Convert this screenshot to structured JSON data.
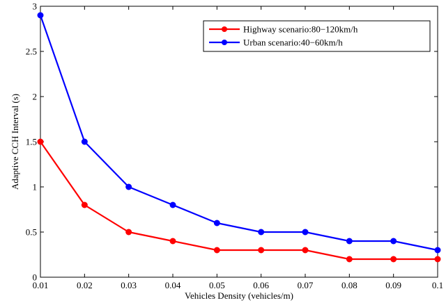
{
  "chart_data": {
    "type": "line",
    "title": "",
    "xlabel": "Vehicles Density (vehicles/m)",
    "ylabel": "Adaptive CCH Interval (s)",
    "xlim": [
      0.01,
      0.1
    ],
    "ylim": [
      0,
      3
    ],
    "x": [
      0.01,
      0.02,
      0.03,
      0.04,
      0.05,
      0.06,
      0.07,
      0.08,
      0.09,
      0.1
    ],
    "x_ticks": [
      "0.01",
      "0.02",
      "0.03",
      "0.04",
      "0.05",
      "0.06",
      "0.07",
      "0.08",
      "0.09",
      "0.1"
    ],
    "y_ticks": [
      "0",
      "0.5",
      "1",
      "1.5",
      "2",
      "2.5",
      "3"
    ],
    "x_tick_values": [
      0.01,
      0.02,
      0.03,
      0.04,
      0.05,
      0.06,
      0.07,
      0.08,
      0.09,
      0.1
    ],
    "y_tick_values": [
      0,
      0.5,
      1,
      1.5,
      2,
      2.5,
      3
    ],
    "grid": false,
    "legend_position": "top-right",
    "series": [
      {
        "name": "Highway scenario:80−120km/h",
        "color": "#ff0000",
        "marker": "circle",
        "values": [
          1.5,
          0.8,
          0.5,
          0.4,
          0.3,
          0.3,
          0.3,
          0.2,
          0.2,
          0.2
        ]
      },
      {
        "name": "Urban scenario:40−60km/h",
        "color": "#0000ff",
        "marker": "circle",
        "values": [
          2.9,
          1.5,
          1.0,
          0.8,
          0.6,
          0.5,
          0.5,
          0.4,
          0.4,
          0.3
        ]
      }
    ]
  }
}
